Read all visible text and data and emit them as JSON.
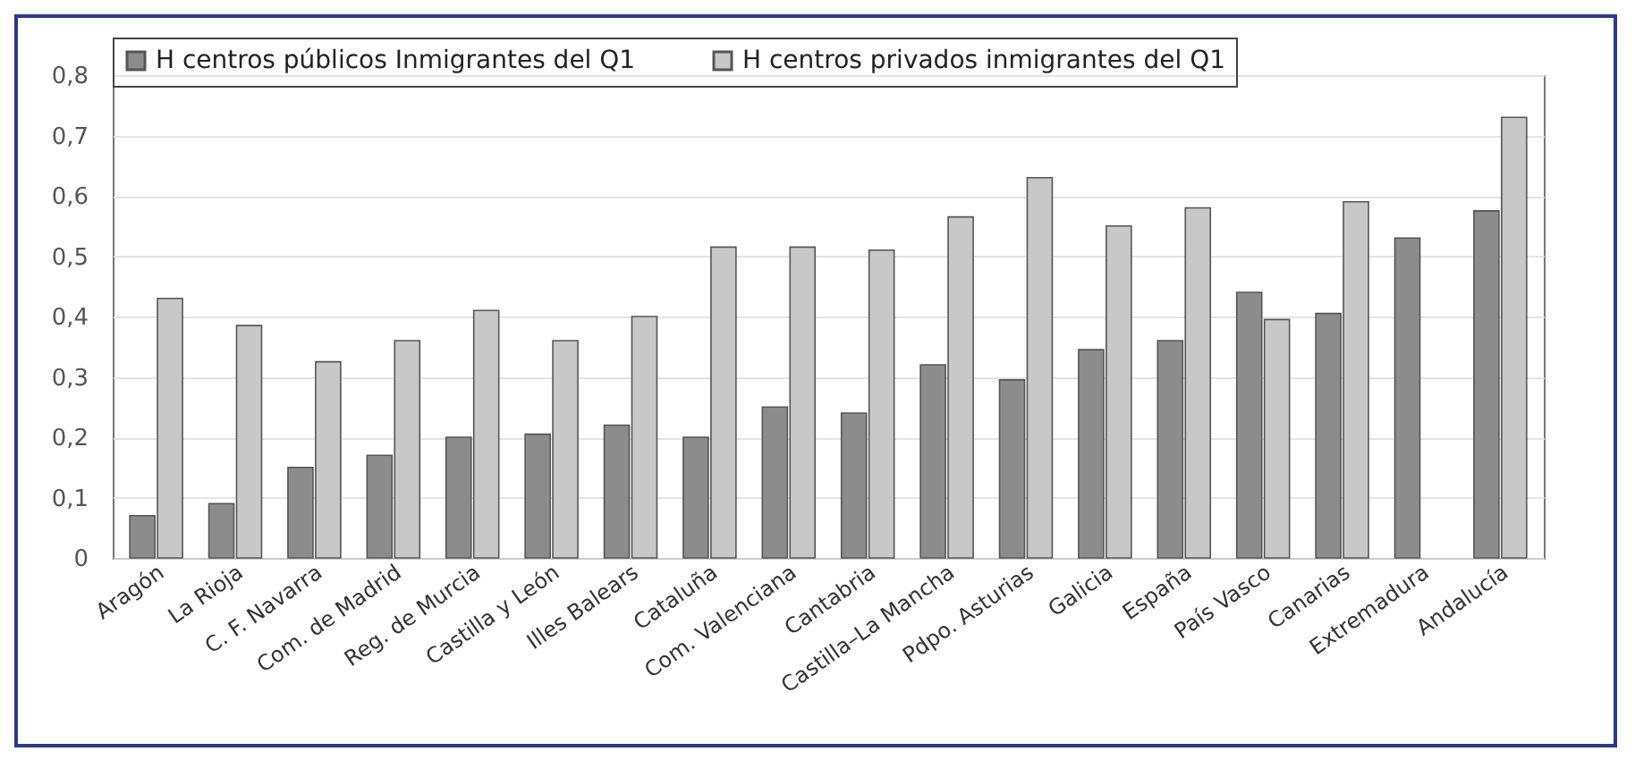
{
  "chart_data": {
    "type": "bar",
    "categories": [
      "Aragón",
      "La Rioja",
      "C. F. Navarra",
      "Com. de Madrid",
      "Reg. de Murcia",
      "Castilla y León",
      "Illes Balears",
      "Cataluña",
      "Com. Valenciana",
      "Cantabria",
      "Castilla–La Mancha",
      "Pdpo. Asturias",
      "Galicia",
      "España",
      "País Vasco",
      "Canarias",
      "Extremadura",
      "Andalucía"
    ],
    "series": [
      {
        "name": "H centros públicos Inmigrantes del Q1",
        "color": "#8c8c8c",
        "values": [
          0.07,
          0.09,
          0.15,
          0.17,
          0.2,
          0.205,
          0.22,
          0.2,
          0.25,
          0.24,
          0.32,
          0.295,
          0.345,
          0.36,
          0.44,
          0.405,
          0.53,
          0.575
        ]
      },
      {
        "name": "H centros privados inmigrantes del Q1",
        "color": "#c8c8c8",
        "values": [
          0.43,
          0.385,
          0.325,
          0.36,
          0.41,
          0.36,
          0.4,
          0.515,
          0.515,
          0.51,
          0.565,
          0.63,
          0.55,
          0.58,
          0.395,
          0.59,
          null,
          0.73
        ]
      }
    ],
    "ylim": [
      0,
      0.8
    ],
    "yticks": [
      0,
      {
        "value": 0.1,
        "label": "0,1"
      },
      {
        "value": 0.2,
        "label": "0,2"
      },
      {
        "value": 0.3,
        "label": "0,3"
      },
      {
        "value": 0.4,
        "label": "0,4"
      },
      {
        "value": 0.5,
        "label": "0,5"
      },
      {
        "value": 0.6,
        "label": "0,6"
      },
      {
        "value": 0.7,
        "label": "0,7"
      },
      {
        "value": 0.8,
        "label": "0,8"
      }
    ],
    "grid": "y",
    "legend": "top"
  }
}
